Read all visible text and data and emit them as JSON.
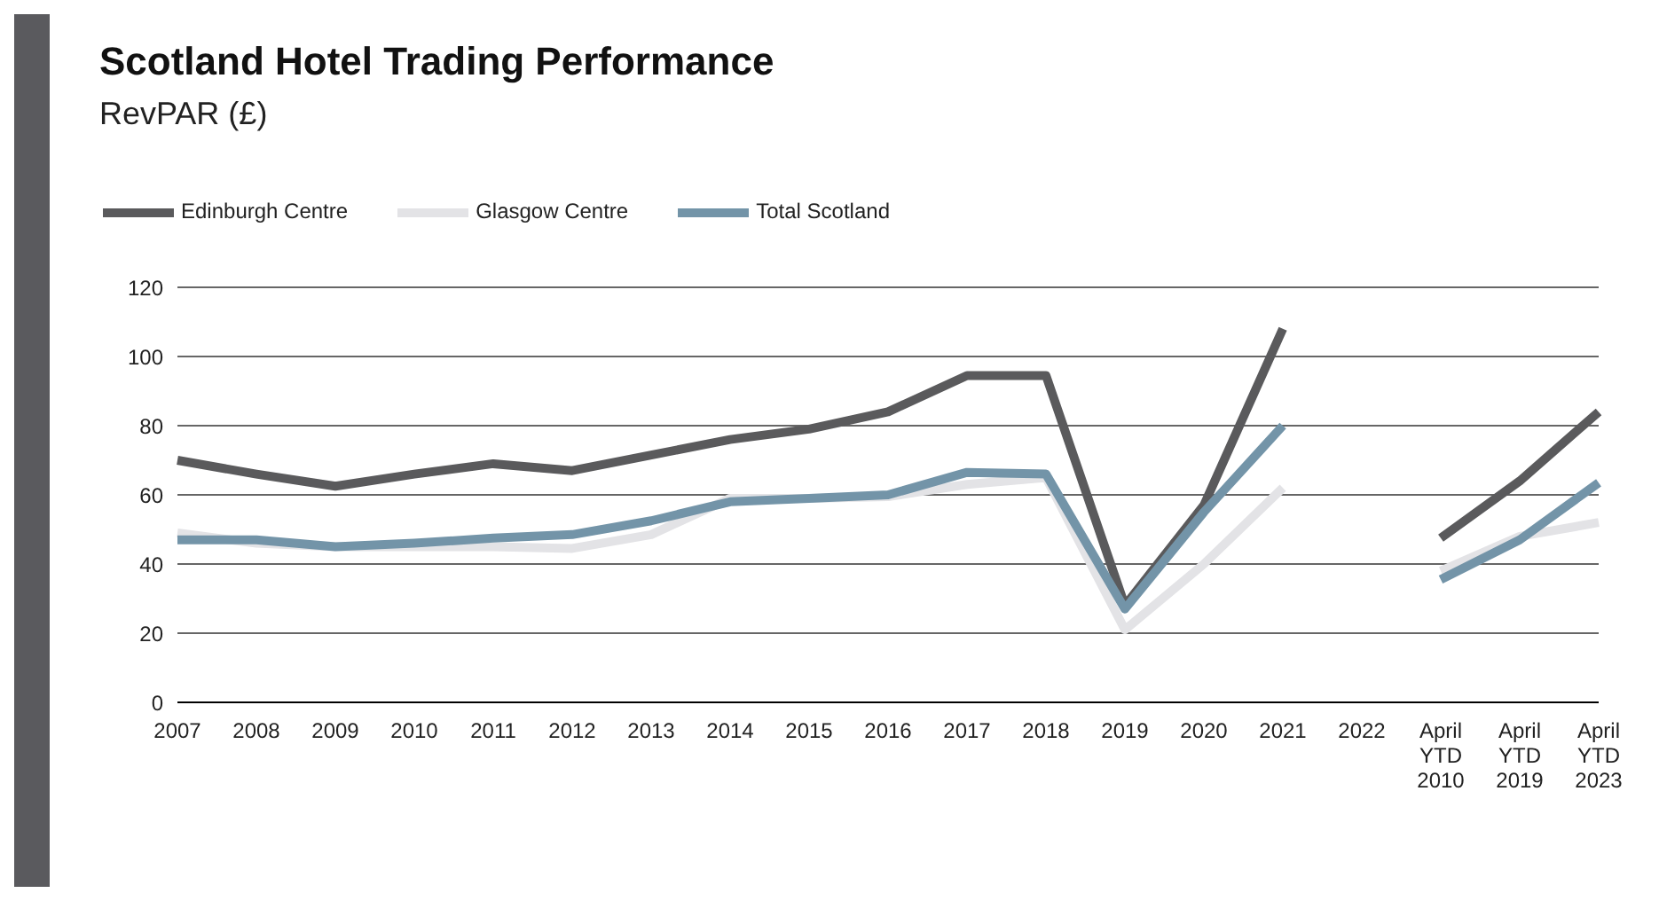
{
  "chart_data": {
    "type": "line",
    "title": "Scotland Hotel Trading Performance",
    "subtitle": "RevPAR (£)",
    "categories": [
      "2007",
      "2008",
      "2009",
      "2010",
      "2011",
      "2012",
      "2013",
      "2014",
      "2015",
      "2016",
      "2017",
      "2018",
      "2019",
      "2020",
      "2021",
      "2022",
      "April YTD 2010",
      "April YTD 2019",
      "April YTD 2023"
    ],
    "series": [
      {
        "name": "Edinburgh Centre",
        "color": "#5a5a5c",
        "values": [
          70,
          66,
          62.5,
          66,
          69,
          67,
          71.5,
          76,
          79,
          84,
          94.5,
          94.5,
          28,
          57,
          108,
          null,
          47.5,
          64,
          84
        ]
      },
      {
        "name": "Glasgow Centre",
        "color": "#e3e3e6",
        "values": [
          49,
          46,
          45,
          45,
          45,
          44.5,
          48.5,
          59,
          59,
          59.5,
          63,
          65,
          21,
          40,
          62,
          null,
          38,
          48,
          52
        ]
      },
      {
        "name": "Total Scotland",
        "color": "#7394a8",
        "values": [
          47,
          47,
          45,
          46,
          47.5,
          48.5,
          52.5,
          58,
          59,
          60,
          66.5,
          66,
          27,
          55,
          80,
          null,
          35.5,
          47,
          63.5
        ]
      }
    ],
    "ylim": [
      0,
      120
    ],
    "yticks": [
      0,
      20,
      40,
      60,
      80,
      100,
      120
    ],
    "grid": "y",
    "legend": "top left",
    "line_style": "solid"
  }
}
